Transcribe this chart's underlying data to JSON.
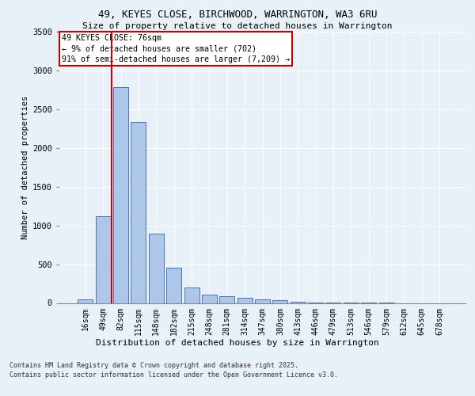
{
  "title_line1": "49, KEYES CLOSE, BIRCHWOOD, WARRINGTON, WA3 6RU",
  "title_line2": "Size of property relative to detached houses in Warrington",
  "xlabel": "Distribution of detached houses by size in Warrington",
  "ylabel": "Number of detached properties",
  "categories": [
    "16sqm",
    "49sqm",
    "82sqm",
    "115sqm",
    "148sqm",
    "182sqm",
    "215sqm",
    "248sqm",
    "281sqm",
    "314sqm",
    "347sqm",
    "380sqm",
    "413sqm",
    "446sqm",
    "479sqm",
    "513sqm",
    "546sqm",
    "579sqm",
    "612sqm",
    "645sqm",
    "678sqm"
  ],
  "values": [
    50,
    1120,
    2780,
    2340,
    890,
    450,
    200,
    110,
    90,
    65,
    50,
    35,
    15,
    10,
    5,
    2,
    1,
    1,
    0,
    0,
    0
  ],
  "bar_color": "#aec6e8",
  "bar_edge_color": "#4472c4",
  "background_color": "#e8f0f8",
  "grid_color": "#ffffff",
  "vline_x": 1.5,
  "vline_color": "#cc0000",
  "annotation_title": "49 KEYES CLOSE: 76sqm",
  "annotation_line2": "← 9% of detached houses are smaller (702)",
  "annotation_line3": "91% of semi-detached houses are larger (7,209) →",
  "annotation_box_color": "#ffffff",
  "annotation_box_edge_color": "#cc0000",
  "ylim": [
    0,
    3500
  ],
  "yticks": [
    0,
    500,
    1000,
    1500,
    2000,
    2500,
    3000,
    3500
  ],
  "footnote_line1": "Contains HM Land Registry data © Crown copyright and database right 2025.",
  "footnote_line2": "Contains public sector information licensed under the Open Government Licence v3.0."
}
